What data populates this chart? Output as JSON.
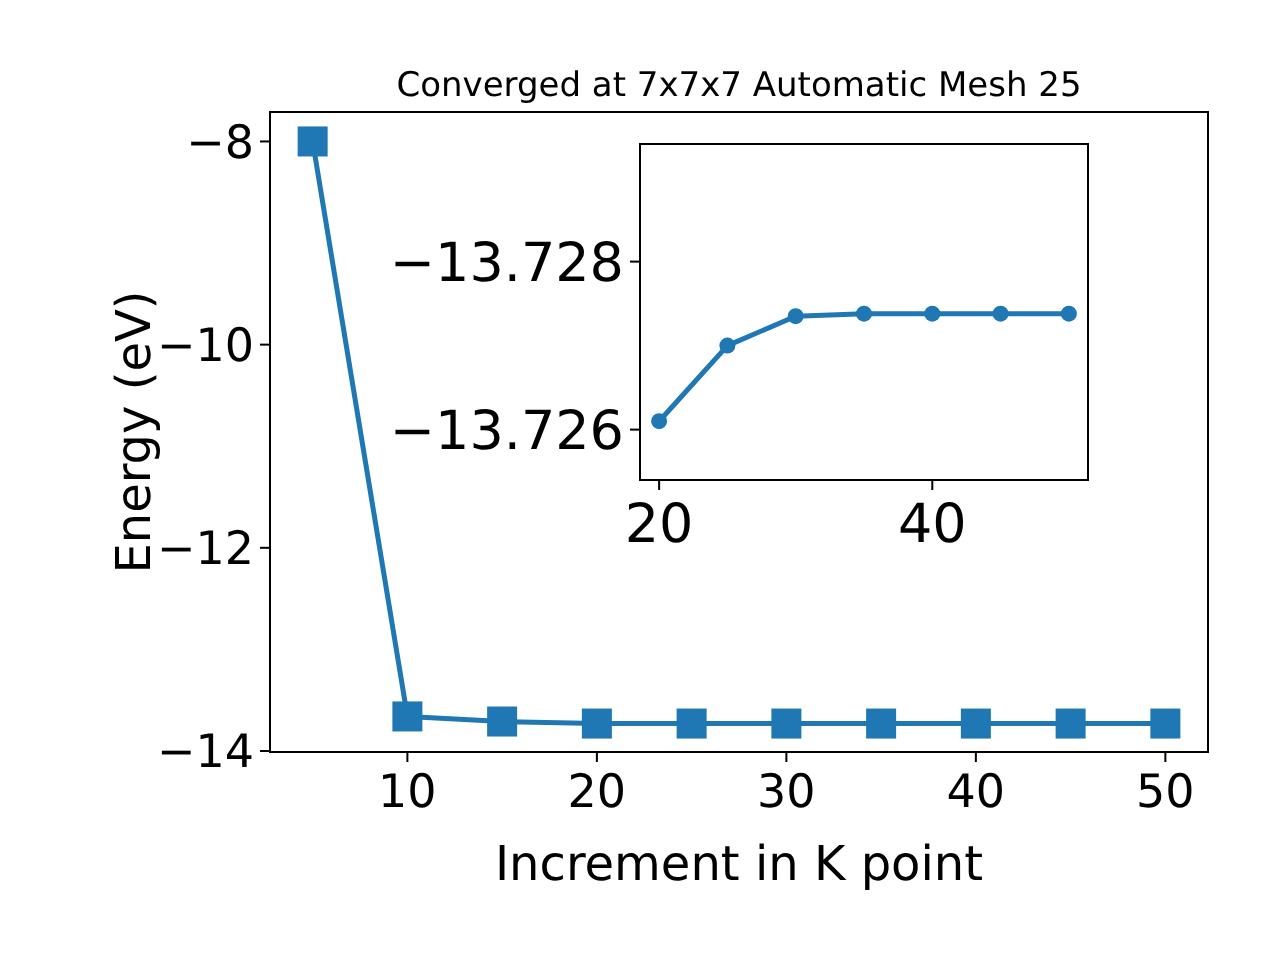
{
  "chart_data": [
    {
      "type": "line",
      "title": "Converged at 7x7x7 Automatic Mesh 25",
      "xlabel": "Increment in K point",
      "ylabel": "Energy (eV)",
      "x": [
        5,
        10,
        15,
        20,
        25,
        30,
        35,
        40,
        45,
        50
      ],
      "series": [
        {
          "color": "#1f77b4",
          "values": [
            -8.0,
            -13.66,
            -13.71,
            -13.73,
            -13.73,
            -13.73,
            -13.73,
            -13.73,
            -13.73,
            -13.73
          ]
        }
      ],
      "xlim": [
        2.75,
        52.25
      ],
      "xticks": [
        10,
        20,
        30,
        40,
        50
      ],
      "ylim": [
        -14.01,
        -7.71
      ],
      "yticks": [
        {
          "value": -14,
          "label": "−14"
        },
        {
          "value": -12,
          "label": "−12"
        },
        {
          "value": -10,
          "label": "−10"
        },
        {
          "value": -8,
          "label": "−8"
        }
      ],
      "marker": "square",
      "grid": false
    },
    {
      "type": "line",
      "x": [
        20,
        25,
        30,
        35,
        40,
        45,
        50
      ],
      "series": [
        {
          "color": "#1f77b4",
          "values": [
            -13.7261,
            -13.727,
            -13.72735,
            -13.72738,
            -13.72738,
            -13.72738,
            -13.72738
          ]
        }
      ],
      "xlim": [
        18.6,
        51.4
      ],
      "xticks": [
        20,
        40
      ],
      "ylim": [
        -13.7254,
        -13.7294
      ],
      "yticks": [
        {
          "value": -13.726,
          "label": "−13.726"
        },
        {
          "value": -13.728,
          "label": "−13.728"
        }
      ],
      "marker": "circle",
      "grid": false
    }
  ]
}
